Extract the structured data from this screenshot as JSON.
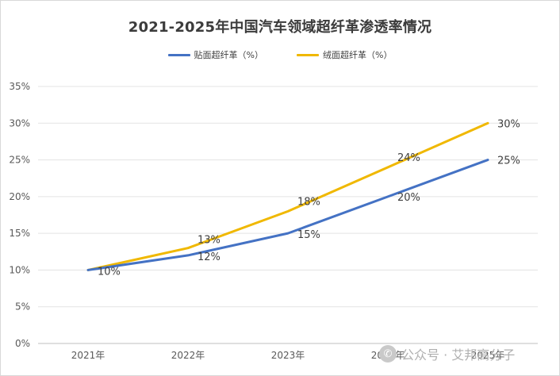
{
  "chart_data": {
    "type": "line",
    "title": "2021-2025年中国汽车领域超纤革渗透率情况",
    "categories": [
      "2021年",
      "2022年",
      "2023年",
      "2024年",
      "2025年"
    ],
    "series": [
      {
        "name": "贴面超纤革（%）",
        "values": [
          10,
          12,
          15,
          20,
          25
        ],
        "labels": [
          "10%",
          "12%",
          "15%",
          "20%",
          "25%"
        ],
        "color": "#4472c4"
      },
      {
        "name": "绒面超纤革（%）",
        "values": [
          10,
          13,
          18,
          24,
          30
        ],
        "labels": [
          "10%",
          "13%",
          "18%",
          "24%",
          "30%"
        ],
        "color": "#f0b800"
      }
    ],
    "ylim": [
      0,
      35
    ],
    "yticks": [
      0,
      5,
      10,
      15,
      20,
      25,
      30,
      35
    ],
    "ytick_labels": [
      "0%",
      "5%",
      "10%",
      "15%",
      "20%",
      "25%",
      "30%",
      "35%"
    ],
    "grid": true,
    "legend_position": "top-center",
    "xlabel": "",
    "ylabel": ""
  },
  "watermark": {
    "icon": "wechat-icon",
    "text": "公众号 · 艾邦高分子"
  }
}
